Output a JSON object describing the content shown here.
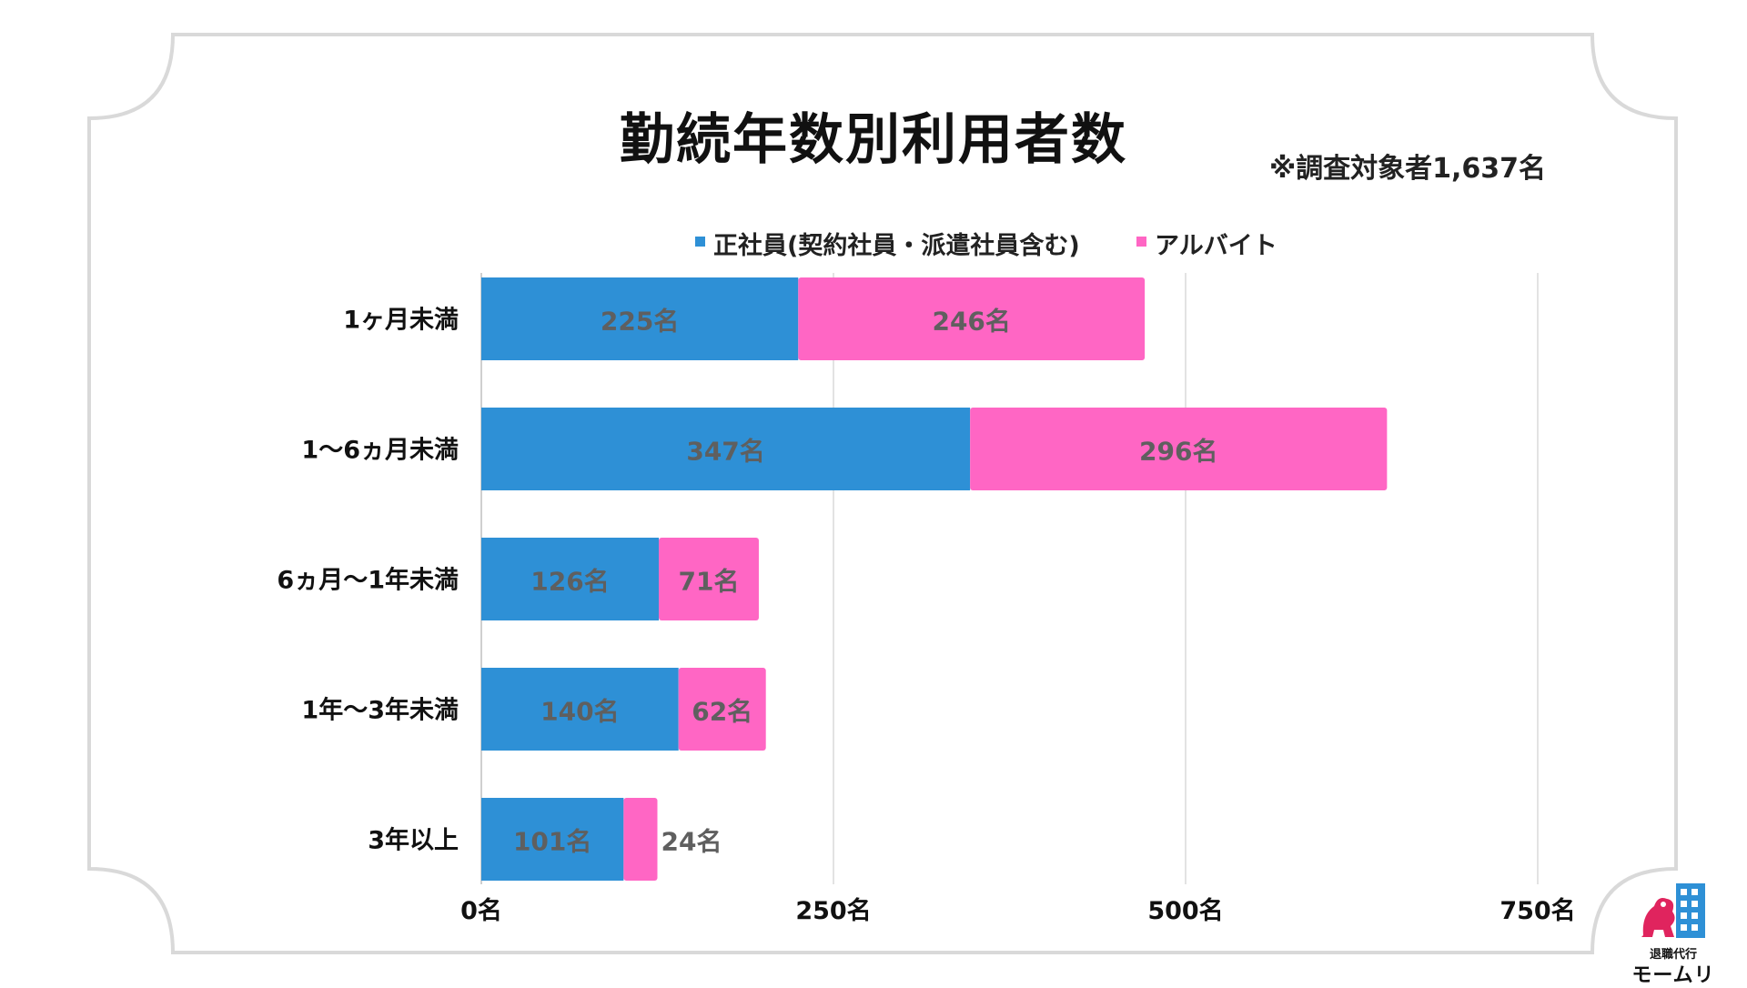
{
  "title": "勤続年数別利用者数",
  "note": "※調査対象者1,637名",
  "legend": [
    {
      "label": "正社員(契約社員・派遣社員含む)",
      "color": "#2E90D6"
    },
    {
      "label": "アルバイト",
      "color": "#FF66C4"
    }
  ],
  "chart_data": {
    "type": "bar",
    "orientation": "horizontal",
    "stacked": true,
    "title": "勤続年数別利用者数",
    "categories": [
      "1ヶ月未満",
      "1〜6ヵ月未満",
      "6ヵ月〜1年未満",
      "1年〜3年未満",
      "3年以上"
    ],
    "series": [
      {
        "name": "正社員(契約社員・派遣社員含む)",
        "values": [
          225,
          347,
          126,
          140,
          101
        ],
        "labels": [
          "225名",
          "347名",
          "126名",
          "140名",
          "101名"
        ]
      },
      {
        "name": "アルバイト",
        "values": [
          246,
          296,
          71,
          62,
          24
        ],
        "labels": [
          "246名",
          "296名",
          "71名",
          "62名",
          "24名"
        ]
      }
    ],
    "xlim": [
      0,
      750
    ],
    "x_ticks": [
      0,
      250,
      500,
      750
    ],
    "x_tick_labels": [
      "0名",
      "250名",
      "500名",
      "750名"
    ],
    "grid": true,
    "legend_position": "top"
  },
  "logo": {
    "line1": "退職代行",
    "line2": "モームリ"
  }
}
